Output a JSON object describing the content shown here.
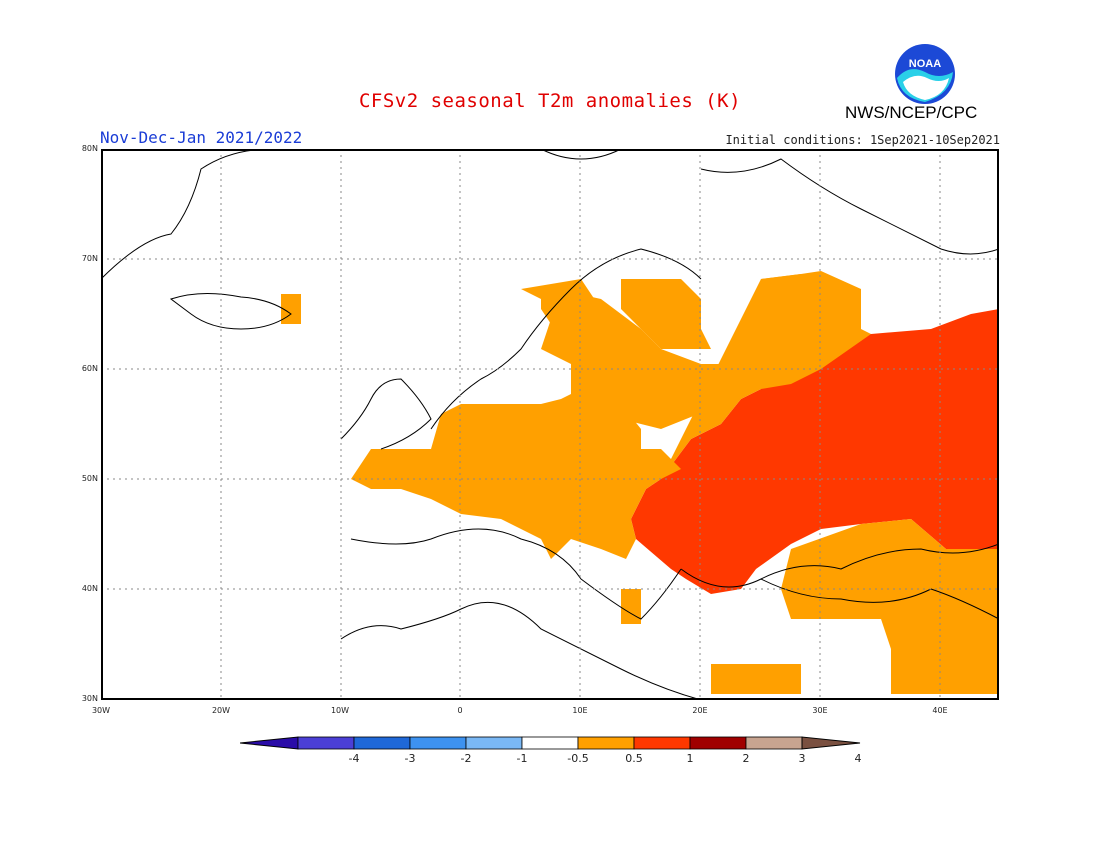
{
  "header": {
    "title": "CFSv2 seasonal T2m anomalies (K)",
    "period": "Nov-Dec-Jan 2021/2022",
    "initial_conditions": "Initial conditions: 1Sep2021-10Sep2021",
    "agency": "NWS/NCEP/CPC",
    "logo_text": "NOAA"
  },
  "map": {
    "region": "Europe",
    "lat_labels": [
      "80N",
      "70N",
      "60N",
      "50N",
      "40N",
      "30N"
    ],
    "lon_labels": [
      "30W",
      "20W",
      "10W",
      "0",
      "10E",
      "20E",
      "30E",
      "40E"
    ],
    "lon_range": [
      -30,
      45
    ],
    "lat_range": [
      30,
      80
    ],
    "colors": {
      "anomaly_0_5_to_1": "#ffa000",
      "anomaly_1_to_2": "#ff3800",
      "land_outline": "#000000",
      "grid": "#888888"
    }
  },
  "colorbar": {
    "labels": [
      "-4",
      "-3",
      "-2",
      "-1",
      "-0.5",
      "0.5",
      "1",
      "2",
      "3",
      "4"
    ],
    "colors": [
      "#2a0ca8",
      "#4b3fd6",
      "#1f68d8",
      "#3d92f0",
      "#7ab8f5",
      "#ffffff",
      "#ffa000",
      "#ff3800",
      "#a00000",
      "#c8a490",
      "#7a5040"
    ]
  }
}
